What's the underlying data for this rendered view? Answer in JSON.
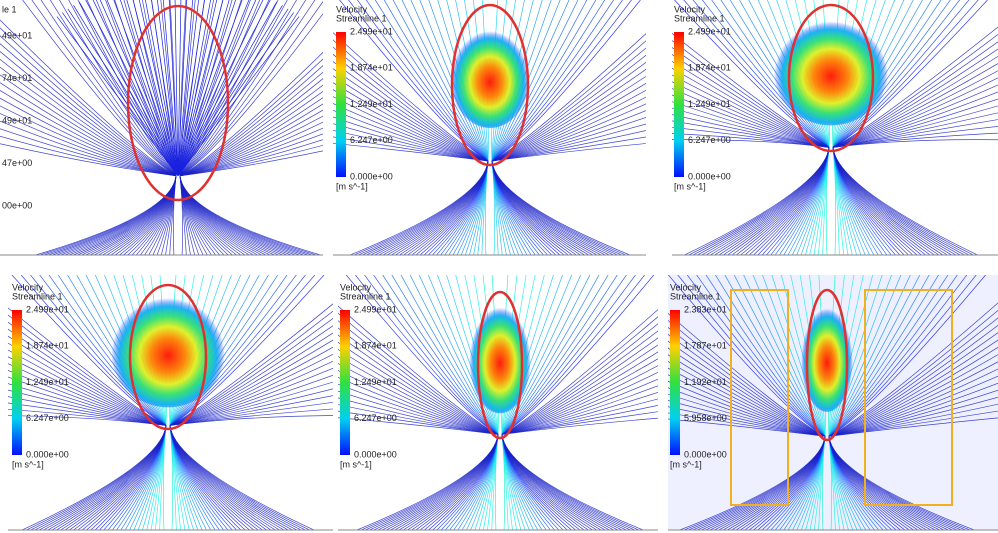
{
  "panels": [
    {
      "legend": {
        "subtitle": "le 1",
        "ticks": [
          "49e+01",
          "74e+01",
          "49e+01",
          "47e+00",
          "00e+00"
        ]
      }
    },
    {
      "legend": {
        "title": "Velocity",
        "subtitle": "Streamline 1",
        "ticks": [
          "2.499e+01",
          "1.874e+01",
          "1.249e+01",
          "6.247e+00",
          "0.000e+00"
        ],
        "unit": "[m s^-1]"
      }
    },
    {
      "legend": {
        "title": "Velocity",
        "subtitle": "Streamline 1",
        "ticks": [
          "2.499e+01",
          "1.874e+01",
          "1.249e+01",
          "6.247e+00",
          "0.000e+00"
        ],
        "unit": "[m s^-1]"
      }
    },
    {
      "legend": {
        "title": "Velocity",
        "subtitle": "Streamline 1",
        "ticks": [
          "2.499e+01",
          "1.874e+01",
          "1.249e+01",
          "6.247e+00",
          "0.000e+00"
        ],
        "unit": "[m s^-1]"
      }
    },
    {
      "legend": {
        "title": "Velocity",
        "subtitle": "Streamline 1",
        "ticks": [
          "2.499e+01",
          "1.874e+01",
          "1.249e+01",
          "6.247e+00",
          "0.000e+00"
        ],
        "unit": "[m s^-1]"
      }
    },
    {
      "legend": {
        "title": "Velocity",
        "subtitle": "Streamline 1",
        "ticks": [
          "2.383e+01",
          "1.787e+01",
          "1.192e+01",
          "5.958e+00",
          "0.000e+00"
        ],
        "unit": "[m s^-1]"
      }
    }
  ]
}
